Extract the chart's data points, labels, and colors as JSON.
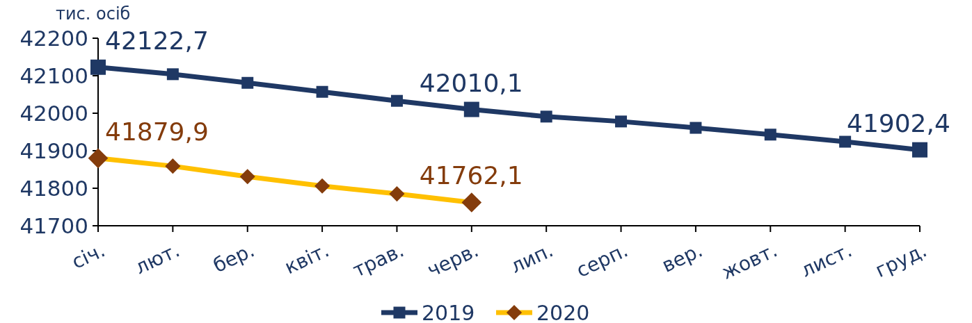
{
  "chart_data": {
    "type": "line",
    "ylabel": "тис. осіб",
    "categories": [
      "січ.",
      "лют.",
      "бер.",
      "квіт.",
      "трав.",
      "черв.",
      "лип.",
      "серп.",
      "вер.",
      "жовт.",
      "лист.",
      "груд."
    ],
    "series": [
      {
        "name": "2019",
        "color": "#1f3864",
        "marker": "square",
        "values": [
          42122.7,
          42104,
          42081,
          42057,
          42033,
          42010.1,
          41991,
          41978,
          41961,
          41943,
          41924,
          41902.4
        ],
        "value_labels": [
          "42122,7",
          null,
          null,
          null,
          null,
          "42010,1",
          null,
          null,
          null,
          null,
          null,
          "41902,4"
        ]
      },
      {
        "name": "2020",
        "color": "#ffc000",
        "colors": [
          "#843c0c",
          "#843c0c",
          "#843c0c",
          "#843c0c",
          "#843c0c",
          "#843c0c",
          null,
          null,
          null,
          null,
          null,
          null
        ],
        "marker": "diamond",
        "values": [
          41879.9,
          41859,
          41831,
          41806,
          41785,
          41762.1,
          null,
          null,
          null,
          null,
          null,
          null
        ],
        "value_labels": [
          "41879,9",
          null,
          null,
          null,
          null,
          "41762,1",
          null,
          null,
          null,
          null,
          null,
          null
        ]
      }
    ],
    "ylim": [
      41700,
      42200
    ],
    "yticks": [
      41700,
      41800,
      41900,
      42000,
      42100,
      42200
    ],
    "legend": "bottom"
  }
}
